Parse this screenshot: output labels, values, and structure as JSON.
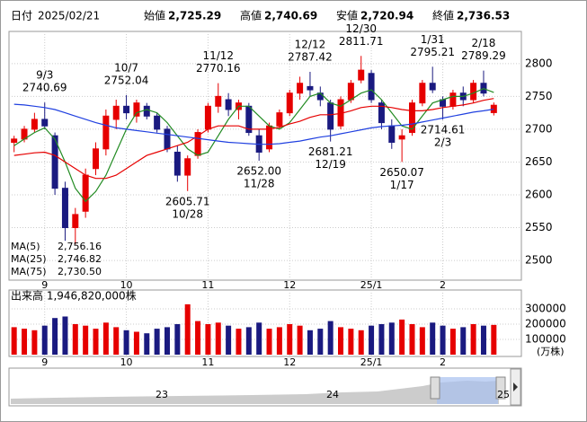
{
  "header": {
    "date_label": "日付",
    "date": "2025/02/21",
    "fields": [
      {
        "label": "始値",
        "value": "2,725.29",
        "color": "#000000"
      },
      {
        "label": "高値",
        "value": "2,740.69",
        "color": "#e60000"
      },
      {
        "label": "安値",
        "value": "2,720.94",
        "color": "#008000"
      },
      {
        "label": "終値",
        "value": "2,736.53",
        "color": "#000000"
      }
    ]
  },
  "chart_data": [
    {
      "type": "candlestick",
      "categories": [
        null,
        null,
        null,
        "9",
        null,
        null,
        null,
        null,
        null,
        null,
        null,
        "10",
        null,
        null,
        null,
        null,
        null,
        null,
        null,
        "11",
        null,
        null,
        null,
        null,
        null,
        null,
        null,
        "12",
        null,
        null,
        null,
        null,
        null,
        null,
        null,
        "25/1",
        null,
        null,
        null,
        null,
        null,
        null,
        "2",
        null,
        null,
        null,
        null,
        null
      ],
      "open": [
        2680,
        2685,
        2700,
        2715,
        2690,
        2610,
        2550,
        2575,
        2640,
        2670,
        2715,
        2735,
        2720,
        2735,
        2720,
        2700,
        2665,
        2630,
        2660,
        2700,
        2735,
        2745,
        2730,
        2735,
        2690,
        2670,
        2705,
        2725,
        2755,
        2765,
        2755,
        2740,
        2705,
        2745,
        2775,
        2785,
        2740,
        2705,
        2685,
        2695,
        2740,
        2770,
        2745,
        2735,
        2755,
        2745,
        2770,
        2725.29
      ],
      "high": [
        2690,
        2705,
        2725,
        2740.69,
        2695,
        2620,
        2580,
        2640,
        2680,
        2730,
        2745,
        2752.04,
        2745,
        2740,
        2725,
        2705,
        2675,
        2660,
        2700,
        2740,
        2770.16,
        2755,
        2745,
        2740,
        2700,
        2710,
        2730,
        2760,
        2780,
        2787.42,
        2765,
        2745,
        2750,
        2775,
        2811.71,
        2790,
        2745,
        2715,
        2700,
        2745,
        2775,
        2795.21,
        2750,
        2760,
        2765,
        2775,
        2789.29,
        2740.69
      ],
      "low": [
        2665,
        2680,
        2695,
        2700,
        2600,
        2530,
        2525,
        2565,
        2630,
        2660,
        2700,
        2715,
        2710,
        2715,
        2695,
        2665,
        2620,
        2605.71,
        2655,
        2695,
        2725,
        2720,
        2715,
        2690,
        2652,
        2665,
        2700,
        2720,
        2745,
        2750,
        2735,
        2681.21,
        2700,
        2740,
        2770,
        2740,
        2700,
        2670,
        2650.07,
        2690,
        2735,
        2755,
        2714.61,
        2730,
        2735,
        2740,
        2750,
        2720.94
      ],
      "close": [
        2685,
        2700,
        2715,
        2705,
        2610,
        2550,
        2570,
        2630,
        2670,
        2720,
        2735,
        2725,
        2740,
        2720,
        2700,
        2670,
        2630,
        2655,
        2695,
        2735,
        2750,
        2730,
        2740,
        2695,
        2665,
        2705,
        2725,
        2755,
        2770,
        2760,
        2745,
        2700,
        2745,
        2770,
        2790,
        2745,
        2710,
        2680,
        2690,
        2740,
        2770,
        2760,
        2735,
        2755,
        2745,
        2770,
        2755,
        2736.53
      ],
      "up_color": "#e60000",
      "down_color": "#1a1a80",
      "series": [
        {
          "name": "MA(5)",
          "color": "#228b22",
          "last_label": "2,756.16",
          "values": [
            2675,
            2685,
            2695,
            2702,
            2685,
            2650,
            2610,
            2590,
            2605,
            2630,
            2665,
            2700,
            2725,
            2730,
            2725,
            2710,
            2690,
            2670,
            2660,
            2665,
            2690,
            2715,
            2735,
            2735,
            2720,
            2705,
            2700,
            2710,
            2730,
            2750,
            2755,
            2740,
            2735,
            2745,
            2755,
            2760,
            2745,
            2725,
            2705,
            2700,
            2720,
            2740,
            2745,
            2750,
            2750,
            2755,
            2762,
            2756.16
          ]
        },
        {
          "name": "MA(25)",
          "color": "#e60000",
          "last_label": "2,746.82",
          "values": [
            2660,
            2662,
            2664,
            2665,
            2660,
            2650,
            2640,
            2630,
            2625,
            2625,
            2630,
            2640,
            2650,
            2660,
            2665,
            2670,
            2675,
            2680,
            2690,
            2700,
            2705,
            2705,
            2705,
            2700,
            2700,
            2700,
            2703,
            2708,
            2712,
            2718,
            2722,
            2722,
            2724,
            2728,
            2733,
            2735,
            2735,
            2733,
            2730,
            2728,
            2728,
            2730,
            2733,
            2735,
            2737,
            2740,
            2744,
            2746.82
          ]
        },
        {
          "name": "MA(75)",
          "color": "#2040e0",
          "last_label": "2,730.50",
          "values": [
            2738,
            2737,
            2735,
            2733,
            2730,
            2725,
            2720,
            2715,
            2710,
            2706,
            2702,
            2700,
            2698,
            2696,
            2694,
            2692,
            2690,
            2688,
            2686,
            2684,
            2682,
            2680,
            2679,
            2678,
            2677,
            2677,
            2678,
            2680,
            2682,
            2685,
            2688,
            2690,
            2693,
            2696,
            2699,
            2702,
            2704,
            2705,
            2706,
            2708,
            2711,
            2714,
            2717,
            2720,
            2723,
            2726,
            2728,
            2730.5
          ]
        }
      ],
      "annotations": [
        {
          "date": "9/3",
          "price": "2740.69",
          "kind": "high"
        },
        {
          "date": "10/7",
          "price": "2752.04",
          "kind": "high"
        },
        {
          "date": "11/12",
          "price": "2770.16",
          "kind": "high"
        },
        {
          "date": "12/12",
          "price": "2787.42",
          "kind": "high"
        },
        {
          "date": "12/30",
          "price": "2811.71",
          "kind": "high"
        },
        {
          "date": "1/31",
          "price": "2795.21",
          "kind": "high"
        },
        {
          "date": "2/18",
          "price": "2789.29",
          "kind": "high"
        },
        {
          "date": "10/28",
          "price": "2605.71",
          "kind": "low"
        },
        {
          "date": "11/28",
          "price": "2652.00",
          "kind": "low"
        },
        {
          "date": "12/19",
          "price": "2681.21",
          "kind": "low"
        },
        {
          "date": "1/17",
          "price": "2650.07",
          "kind": "low"
        },
        {
          "date": "2/3",
          "price": "2714.61",
          "kind": "low"
        }
      ],
      "ylim": [
        2470,
        2849
      ],
      "yticks": [
        2500,
        2550,
        2600,
        2650,
        2700,
        2750,
        2800
      ],
      "grid": true
    },
    {
      "type": "bar",
      "title": "出来高 1,946,820,000株",
      "unit": "(万株)",
      "values": [
        180000,
        170000,
        160000,
        190000,
        240000,
        250000,
        200000,
        190000,
        170000,
        210000,
        180000,
        160000,
        150000,
        140000,
        170000,
        180000,
        200000,
        330000,
        220000,
        200000,
        210000,
        190000,
        170000,
        180000,
        210000,
        170000,
        180000,
        200000,
        190000,
        160000,
        170000,
        220000,
        180000,
        170000,
        160000,
        190000,
        200000,
        210000,
        230000,
        200000,
        180000,
        210000,
        190000,
        170000,
        180000,
        200000,
        190000,
        195000
      ],
      "ylim": [
        0,
        423500
      ],
      "yticks": [
        100000,
        200000,
        300000
      ],
      "grid": true
    }
  ],
  "navigator": {
    "labels": [
      "23",
      "24",
      "25"
    ]
  }
}
